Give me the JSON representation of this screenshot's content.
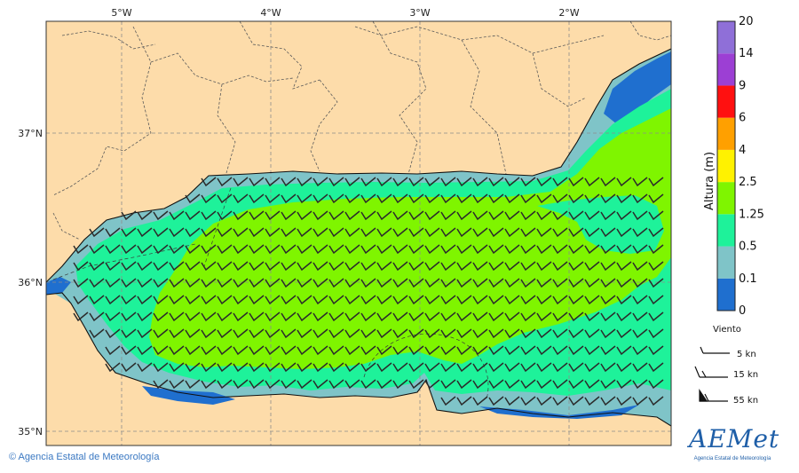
{
  "map": {
    "lon_labels": [
      "5°W",
      "4°W",
      "3°W",
      "2°W"
    ],
    "lat_labels": [
      "37°N",
      "36°N",
      "35°N"
    ]
  },
  "legend": {
    "axis_label": "Altura (m)",
    "levels": [
      "0",
      "0.1",
      "0.5",
      "1.25",
      "2.5",
      "4",
      "6",
      "9",
      "14",
      "20"
    ],
    "colors": [
      "#1f6fcf",
      "#7fc4c8",
      "#1ef29a",
      "#7ff500",
      "#fff200",
      "#ffa000",
      "#ff1010",
      "#9c3fd4",
      "#8f6fd8",
      "#5a4098"
    ]
  },
  "wind": {
    "title": "Viento",
    "items": [
      "5 kn",
      "15 kn",
      "55 kn"
    ]
  },
  "colors": {
    "land": "#fddcaa",
    "wave_low": "#7fc4c8",
    "wave_mid": "#1ef29a",
    "wave_high": "#7ff500",
    "deep": "#1f6fcf"
  },
  "footer": {
    "credit": "© Agencia Estatal de Meteorología",
    "logo_text": "AEMet",
    "logo_sub": "Agencia Estatal de Meteorología"
  }
}
